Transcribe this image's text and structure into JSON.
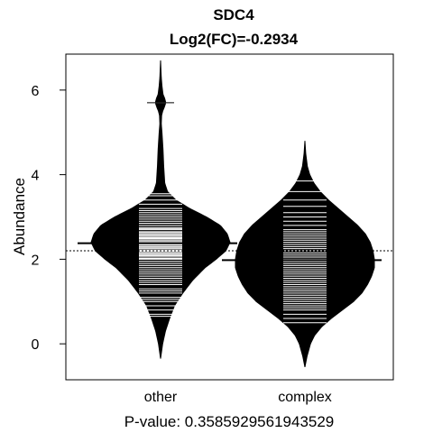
{
  "chart_data": {
    "type": "beanplot",
    "title": "SDC4",
    "subtitle": "Log2(FC)=-0.2934",
    "xlabel": "P-value: 0.3585929561943529",
    "ylabel": "Abundance",
    "ylim": [
      -0.85,
      6.85
    ],
    "yticks": [
      0,
      2,
      4,
      6
    ],
    "overall_mean": 2.2,
    "categories": [
      "other",
      "complex"
    ],
    "groups": [
      {
        "name": "other",
        "mean": 2.38,
        "density": [
          [
            -0.35,
            0.0
          ],
          [
            0.0,
            0.03
          ],
          [
            0.3,
            0.07
          ],
          [
            0.6,
            0.13
          ],
          [
            0.9,
            0.2
          ],
          [
            1.2,
            0.32
          ],
          [
            1.5,
            0.46
          ],
          [
            1.8,
            0.64
          ],
          [
            2.0,
            0.8
          ],
          [
            2.2,
            0.94
          ],
          [
            2.4,
            1.0
          ],
          [
            2.6,
            0.96
          ],
          [
            2.8,
            0.86
          ],
          [
            3.0,
            0.66
          ],
          [
            3.2,
            0.42
          ],
          [
            3.4,
            0.22
          ],
          [
            3.6,
            0.1
          ],
          [
            3.8,
            0.06
          ],
          [
            4.2,
            0.045
          ],
          [
            4.6,
            0.035
          ],
          [
            5.0,
            0.02
          ],
          [
            5.2,
            0.01
          ],
          [
            5.4,
            0.015
          ],
          [
            5.5,
            0.03
          ],
          [
            5.6,
            0.055
          ],
          [
            5.7,
            0.075
          ],
          [
            5.8,
            0.06
          ],
          [
            5.9,
            0.035
          ],
          [
            6.1,
            0.02
          ],
          [
            6.3,
            0.01
          ],
          [
            6.7,
            0.0
          ]
        ],
        "points": [
          0.65,
          0.7,
          0.8,
          0.9,
          1.0,
          1.05,
          1.1,
          1.2,
          1.25,
          1.3,
          1.4,
          1.45,
          1.5,
          1.55,
          1.6,
          1.65,
          1.7,
          1.75,
          1.8,
          1.85,
          1.9,
          1.95,
          2.0,
          2.02,
          2.05,
          2.08,
          2.1,
          2.12,
          2.15,
          2.18,
          2.2,
          2.22,
          2.25,
          2.28,
          2.3,
          2.33,
          2.35,
          2.38,
          2.4,
          2.42,
          2.45,
          2.48,
          2.5,
          2.52,
          2.55,
          2.58,
          2.6,
          2.63,
          2.65,
          2.7,
          2.72,
          2.75,
          2.8,
          2.85,
          2.9,
          2.95,
          3.0,
          3.05,
          3.1,
          3.15,
          3.2,
          3.3,
          3.4,
          3.5,
          3.55,
          5.7
        ]
      },
      {
        "name": "complex",
        "mean": 1.98,
        "density": [
          [
            -0.55,
            0.0
          ],
          [
            -0.3,
            0.03
          ],
          [
            0.0,
            0.08
          ],
          [
            0.2,
            0.14
          ],
          [
            0.4,
            0.24
          ],
          [
            0.6,
            0.38
          ],
          [
            0.8,
            0.54
          ],
          [
            1.0,
            0.7
          ],
          [
            1.2,
            0.82
          ],
          [
            1.4,
            0.9
          ],
          [
            1.6,
            0.96
          ],
          [
            1.8,
            1.0
          ],
          [
            2.0,
            1.0
          ],
          [
            2.2,
            0.98
          ],
          [
            2.4,
            0.94
          ],
          [
            2.6,
            0.87
          ],
          [
            2.8,
            0.76
          ],
          [
            3.0,
            0.62
          ],
          [
            3.2,
            0.48
          ],
          [
            3.4,
            0.34
          ],
          [
            3.6,
            0.22
          ],
          [
            3.8,
            0.13
          ],
          [
            4.0,
            0.07
          ],
          [
            4.2,
            0.035
          ],
          [
            4.5,
            0.012
          ],
          [
            4.8,
            0.0
          ]
        ],
        "points": [
          0.5,
          0.6,
          0.7,
          0.8,
          0.85,
          0.9,
          0.95,
          1.0,
          1.05,
          1.1,
          1.15,
          1.2,
          1.25,
          1.3,
          1.35,
          1.4,
          1.45,
          1.5,
          1.55,
          1.6,
          1.65,
          1.7,
          1.75,
          1.8,
          1.85,
          1.9,
          1.95,
          2.0,
          2.05,
          2.1,
          2.15,
          2.2,
          2.25,
          2.3,
          2.35,
          2.4,
          2.45,
          2.5,
          2.55,
          2.6,
          2.65,
          2.7,
          2.8,
          2.9,
          3.0,
          3.1,
          3.25,
          3.4,
          3.6,
          3.85
        ]
      }
    ]
  }
}
